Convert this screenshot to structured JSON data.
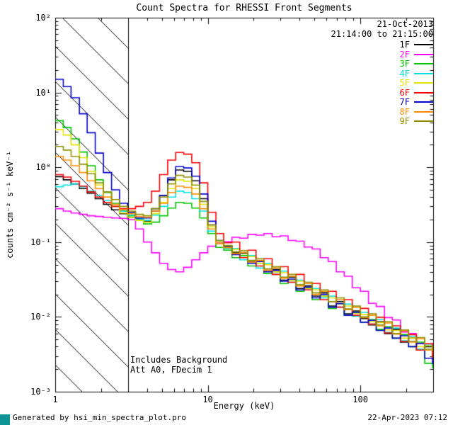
{
  "header": {
    "date": "21-Oct-2013",
    "time_range": "21:14:00 to 21:15:00"
  },
  "annotations": {
    "line1": "Includes Background",
    "line2": "Att A0, FDecim 1"
  },
  "footer": {
    "left": "Generated by hsi_min_spectra_plot.pro",
    "right": "22-Apr-2023 07:12"
  },
  "colors": {
    "axis": "#000000",
    "background": "#ffffff",
    "corner_accent": "#0d9494"
  },
  "chart_data": {
    "type": "line",
    "scale": "log-log",
    "step_mode": true,
    "title": "Count Spectra for RHESSI Front Segments",
    "xlabel": "Energy (keV)",
    "ylabel": "counts cm⁻² s⁻¹ keV⁻¹",
    "xlim": [
      1,
      300
    ],
    "ylim": [
      0.001,
      100
    ],
    "x_tick_labels": [
      "1",
      "10",
      "100"
    ],
    "x_tick_decades": [
      0,
      1,
      2
    ],
    "y_tick_labels": [
      "10²",
      "10¹",
      "10⁰",
      "10⁻¹",
      "10⁻²",
      "10⁻³"
    ],
    "y_tick_decades": [
      2,
      1,
      0,
      -1,
      -2,
      -3
    ],
    "hatch_region_keV": [
      1,
      3
    ],
    "legend_position": "top-right",
    "x_keV": [
      1.0,
      1.13,
      1.27,
      1.44,
      1.62,
      1.83,
      2.07,
      2.34,
      2.64,
      2.98,
      3.36,
      3.79,
      4.28,
      4.83,
      5.46,
      6.16,
      6.95,
      7.85,
      8.86,
      10.0,
      11.3,
      12.7,
      14.4,
      16.2,
      18.3,
      20.7,
      23.3,
      26.4,
      29.8,
      33.6,
      37.9,
      42.8,
      48.3,
      54.5,
      61.6,
      69.5,
      78.4,
      88.5,
      100,
      113,
      127,
      144,
      162,
      183,
      207,
      233,
      264,
      297
    ],
    "series": [
      {
        "name": "1F",
        "color": "#000000",
        "values": [
          0.75,
          0.68,
          0.6,
          0.52,
          0.45,
          0.38,
          0.32,
          0.27,
          0.24,
          0.215,
          0.2,
          0.19,
          0.26,
          0.42,
          0.68,
          0.92,
          0.88,
          0.66,
          0.38,
          0.17,
          0.1,
          0.088,
          0.072,
          0.07,
          0.055,
          0.056,
          0.042,
          0.043,
          0.031,
          0.034,
          0.024,
          0.026,
          0.019,
          0.021,
          0.014,
          0.016,
          0.011,
          0.012,
          0.0095,
          0.0078,
          0.0086,
          0.006,
          0.0068,
          0.0046,
          0.0052,
          0.0036,
          0.004,
          0.0029
        ]
      },
      {
        "name": "2F",
        "color": "#ff00ff",
        "values": [
          0.28,
          0.26,
          0.245,
          0.235,
          0.225,
          0.22,
          0.215,
          0.21,
          0.208,
          0.2,
          0.15,
          0.1,
          0.072,
          0.052,
          0.043,
          0.04,
          0.046,
          0.058,
          0.072,
          0.088,
          0.098,
          0.101,
          0.116,
          0.113,
          0.127,
          0.124,
          0.13,
          0.118,
          0.121,
          0.105,
          0.103,
          0.086,
          0.081,
          0.062,
          0.055,
          0.04,
          0.035,
          0.0245,
          0.022,
          0.0152,
          0.0138,
          0.0098,
          0.0091,
          0.0063,
          0.006,
          0.0044,
          0.0042,
          0.0034
        ]
      },
      {
        "name": "3F",
        "color": "#00c400",
        "values": [
          4.2,
          3.4,
          2.4,
          1.6,
          1.05,
          0.68,
          0.46,
          0.33,
          0.26,
          0.225,
          0.195,
          0.175,
          0.185,
          0.225,
          0.285,
          0.34,
          0.33,
          0.285,
          0.21,
          0.13,
          0.085,
          0.078,
          0.062,
          0.066,
          0.048,
          0.052,
          0.038,
          0.04,
          0.028,
          0.031,
          0.022,
          0.024,
          0.017,
          0.019,
          0.013,
          0.015,
          0.0105,
          0.0115,
          0.0085,
          0.0092,
          0.0068,
          0.0074,
          0.0052,
          0.0058,
          0.004,
          0.0046,
          0.0024,
          0.0021
        ]
      },
      {
        "name": "4F",
        "color": "#00e0e0",
        "values": [
          0.55,
          0.58,
          0.6,
          0.55,
          0.48,
          0.42,
          0.36,
          0.3,
          0.26,
          0.23,
          0.205,
          0.195,
          0.23,
          0.3,
          0.4,
          0.48,
          0.46,
          0.38,
          0.26,
          0.14,
          0.095,
          0.082,
          0.082,
          0.058,
          0.066,
          0.045,
          0.052,
          0.037,
          0.041,
          0.029,
          0.031,
          0.023,
          0.024,
          0.018,
          0.019,
          0.0135,
          0.0148,
          0.0102,
          0.0115,
          0.008,
          0.0092,
          0.0062,
          0.0071,
          0.0048,
          0.0055,
          0.0037,
          0.0042,
          0.0029
        ]
      },
      {
        "name": "5F",
        "color": "#e3e300",
        "values": [
          3.2,
          2.7,
          2.0,
          1.35,
          0.88,
          0.58,
          0.4,
          0.3,
          0.245,
          0.215,
          0.195,
          0.185,
          0.24,
          0.34,
          0.52,
          0.68,
          0.65,
          0.52,
          0.32,
          0.16,
          0.1,
          0.086,
          0.08,
          0.07,
          0.064,
          0.052,
          0.05,
          0.04,
          0.039,
          0.031,
          0.03,
          0.024,
          0.023,
          0.019,
          0.018,
          0.0148,
          0.014,
          0.0112,
          0.0108,
          0.0086,
          0.0084,
          0.0067,
          0.0066,
          0.0052,
          0.0052,
          0.004,
          0.0041,
          0.0032
        ]
      },
      {
        "name": "6F",
        "color": "#ff0000",
        "values": [
          0.8,
          0.74,
          0.65,
          0.56,
          0.47,
          0.4,
          0.34,
          0.3,
          0.28,
          0.28,
          0.3,
          0.34,
          0.48,
          0.8,
          1.25,
          1.58,
          1.5,
          1.15,
          0.62,
          0.25,
          0.13,
          0.098,
          0.1,
          0.062,
          0.078,
          0.048,
          0.06,
          0.037,
          0.047,
          0.029,
          0.037,
          0.023,
          0.028,
          0.017,
          0.022,
          0.0135,
          0.017,
          0.0105,
          0.013,
          0.008,
          0.0099,
          0.0061,
          0.0076,
          0.0047,
          0.0058,
          0.0036,
          0.0044,
          0.0028
        ]
      },
      {
        "name": "7F",
        "color": "#0000cc",
        "values": [
          15.0,
          12.0,
          8.5,
          5.2,
          2.9,
          1.55,
          0.85,
          0.5,
          0.33,
          0.25,
          0.21,
          0.21,
          0.28,
          0.42,
          0.72,
          1.02,
          0.98,
          0.76,
          0.44,
          0.19,
          0.105,
          0.088,
          0.068,
          0.072,
          0.052,
          0.055,
          0.04,
          0.042,
          0.03,
          0.032,
          0.023,
          0.025,
          0.018,
          0.02,
          0.0135,
          0.015,
          0.0105,
          0.0115,
          0.0085,
          0.009,
          0.0066,
          0.0071,
          0.0052,
          0.0056,
          0.004,
          0.0044,
          0.0028,
          0.0024
        ]
      },
      {
        "name": "8F",
        "color": "#ff8c00",
        "values": [
          1.4,
          1.25,
          1.05,
          0.85,
          0.66,
          0.52,
          0.4,
          0.32,
          0.27,
          0.24,
          0.22,
          0.215,
          0.26,
          0.33,
          0.46,
          0.56,
          0.54,
          0.44,
          0.28,
          0.15,
          0.095,
          0.084,
          0.07,
          0.073,
          0.054,
          0.057,
          0.042,
          0.045,
          0.033,
          0.035,
          0.026,
          0.028,
          0.02,
          0.022,
          0.016,
          0.017,
          0.0125,
          0.0135,
          0.0098,
          0.0105,
          0.0076,
          0.0083,
          0.0059,
          0.0065,
          0.0046,
          0.0051,
          0.0036,
          0.004
        ]
      },
      {
        "name": "9F",
        "color": "#8f8f00",
        "values": [
          1.9,
          1.7,
          1.4,
          1.1,
          0.82,
          0.62,
          0.47,
          0.37,
          0.3,
          0.26,
          0.235,
          0.225,
          0.28,
          0.4,
          0.6,
          0.78,
          0.74,
          0.58,
          0.35,
          0.17,
          0.105,
          0.09,
          0.074,
          0.077,
          0.057,
          0.06,
          0.044,
          0.047,
          0.034,
          0.037,
          0.027,
          0.029,
          0.021,
          0.023,
          0.016,
          0.018,
          0.0128,
          0.014,
          0.01,
          0.011,
          0.0078,
          0.0086,
          0.006,
          0.0067,
          0.0047,
          0.0053,
          0.0037,
          0.0041
        ]
      }
    ]
  }
}
